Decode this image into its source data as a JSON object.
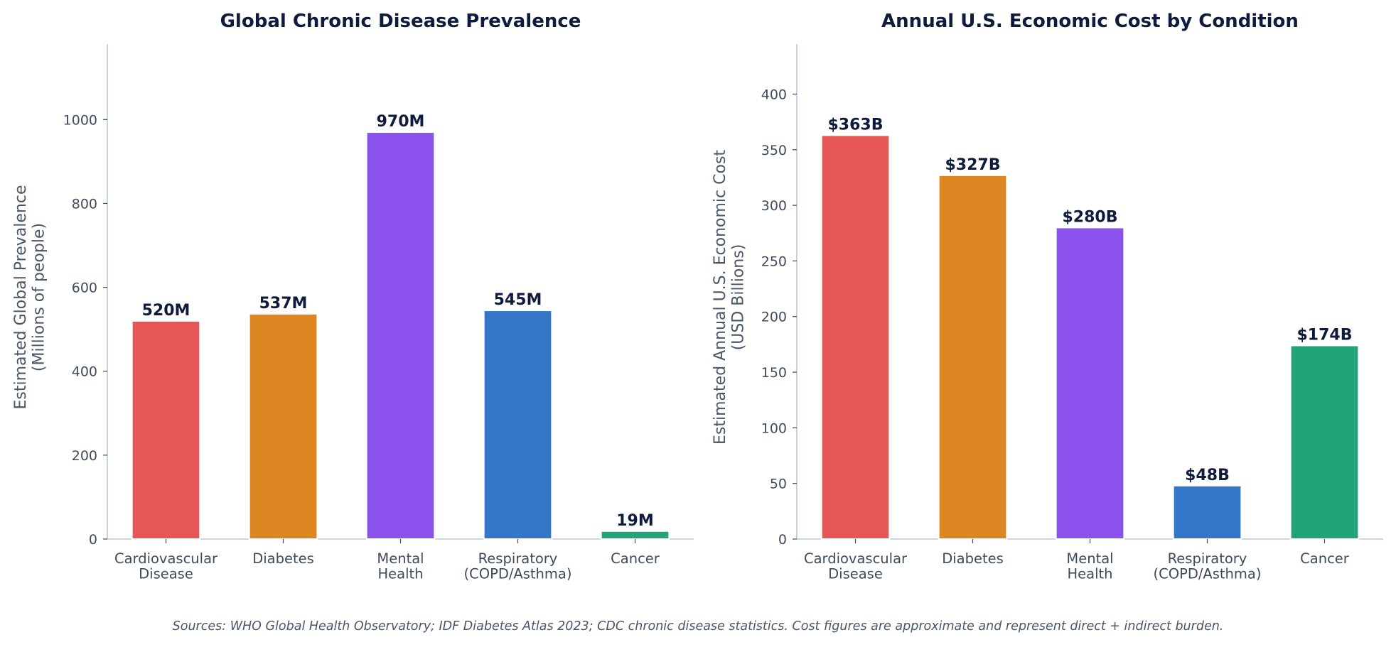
{
  "chart_data": [
    {
      "type": "bar",
      "title": "Global Chronic Disease Prevalence",
      "ylabel": [
        "Estimated Global Prevalence",
        "(Millions of people)"
      ],
      "categories": [
        [
          "Cardiovascular",
          "Disease"
        ],
        [
          "Diabetes"
        ],
        [
          "Mental",
          "Health"
        ],
        [
          "Respiratory",
          "(COPD/Asthma)"
        ],
        [
          "Cancer"
        ]
      ],
      "values": [
        520,
        537,
        970,
        545,
        19
      ],
      "data_labels": [
        "520M",
        "537M",
        "970M",
        "545M",
        "19M"
      ],
      "colors": [
        "#e85757",
        "#dd8723",
        "#8b51ec",
        "#3477c8",
        "#23a37a"
      ],
      "ylim": [
        0,
        1180
      ],
      "yticks": [
        0,
        200,
        400,
        600,
        800,
        1000
      ],
      "grid": false
    },
    {
      "type": "bar",
      "title": "Annual U.S. Economic Cost by Condition",
      "ylabel": [
        "Estimated Annual U.S. Economic Cost",
        "(USD Billions)"
      ],
      "categories": [
        [
          "Cardiovascular",
          "Disease"
        ],
        [
          "Diabetes"
        ],
        [
          "Mental",
          "Health"
        ],
        [
          "Respiratory",
          "(COPD/Asthma)"
        ],
        [
          "Cancer"
        ]
      ],
      "values": [
        363,
        327,
        280,
        48,
        174
      ],
      "data_labels": [
        "$363B",
        "$327B",
        "$280B",
        "$48B",
        "$174B"
      ],
      "colors": [
        "#e85757",
        "#dd8723",
        "#8b51ec",
        "#3477c8",
        "#23a37a"
      ],
      "ylim": [
        0,
        445
      ],
      "yticks": [
        0,
        50,
        100,
        150,
        200,
        250,
        300,
        350,
        400
      ],
      "grid": false
    }
  ],
  "source_note": "Sources: WHO Global Health Observatory; IDF Diabetes Atlas 2023; CDC chronic disease statistics. Cost figures are approximate and represent direct + indirect burden."
}
